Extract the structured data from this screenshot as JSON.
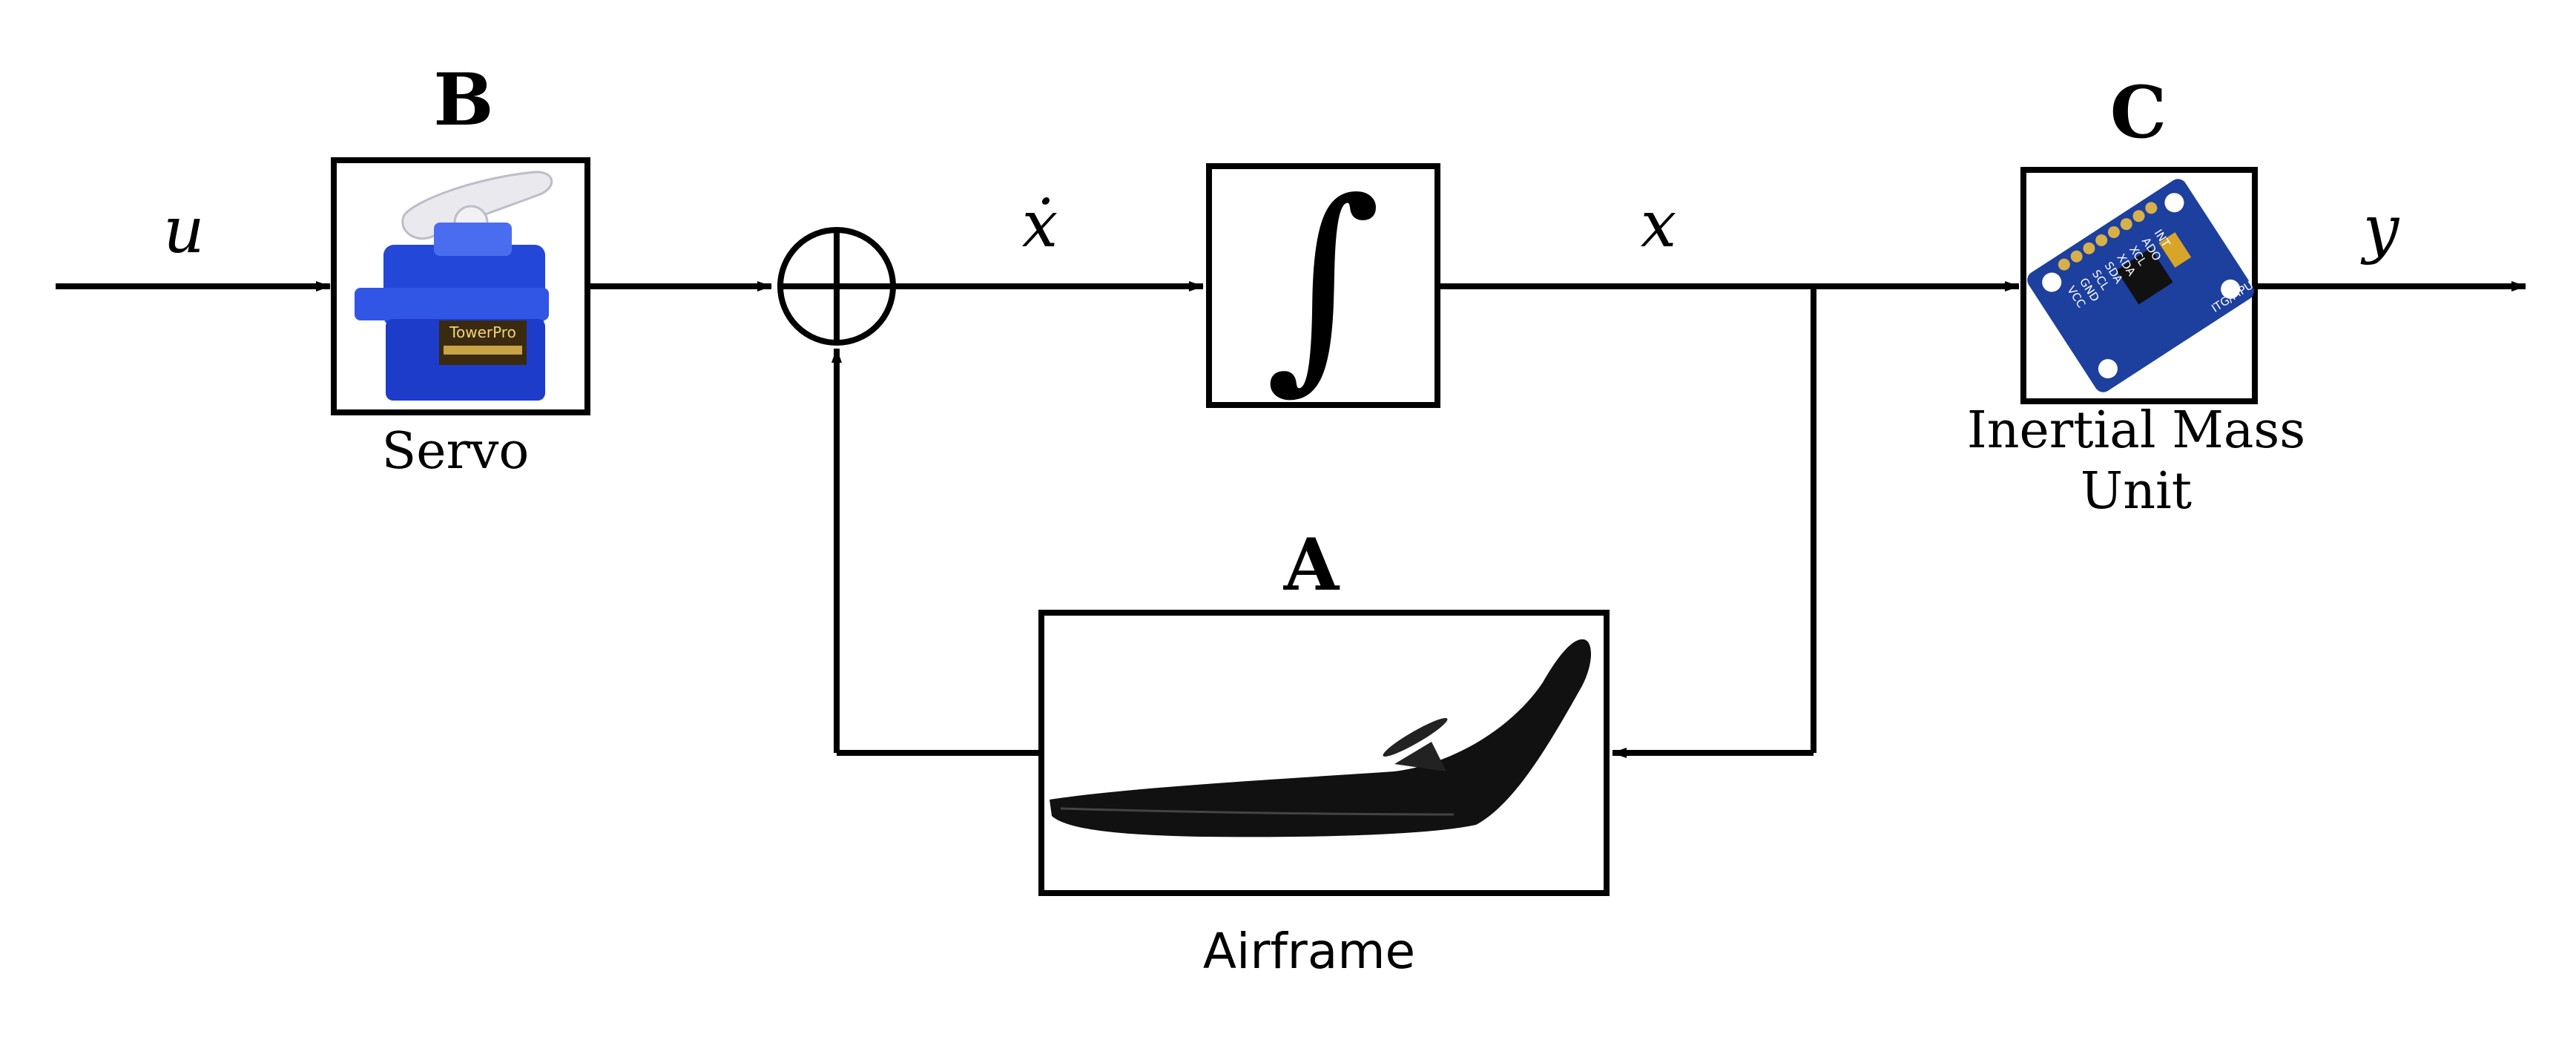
{
  "signals": {
    "input": "u",
    "state_derivative": "ẋ",
    "state": "x",
    "output": "y"
  },
  "blocks": {
    "servo": {
      "letter": "B",
      "caption": "Servo"
    },
    "integrator": {
      "symbol": "∫"
    },
    "imu": {
      "letter": "C",
      "caption_line1": "Inertial Mass",
      "caption_line2": "Unit",
      "pin_labels": [
        "VCC",
        "GND",
        "SCL",
        "SDA",
        "XDA",
        "XCL",
        "ADO",
        "INT"
      ],
      "board_text": "ITG/MPU"
    },
    "airframe": {
      "letter": "A",
      "caption": "Airframe"
    }
  },
  "servo_label": "TowerPro",
  "colors": {
    "line": "#000000",
    "servo_blue": "#1f3fd6",
    "imu_board": "#1d3f9e",
    "airframe": "#111111"
  }
}
